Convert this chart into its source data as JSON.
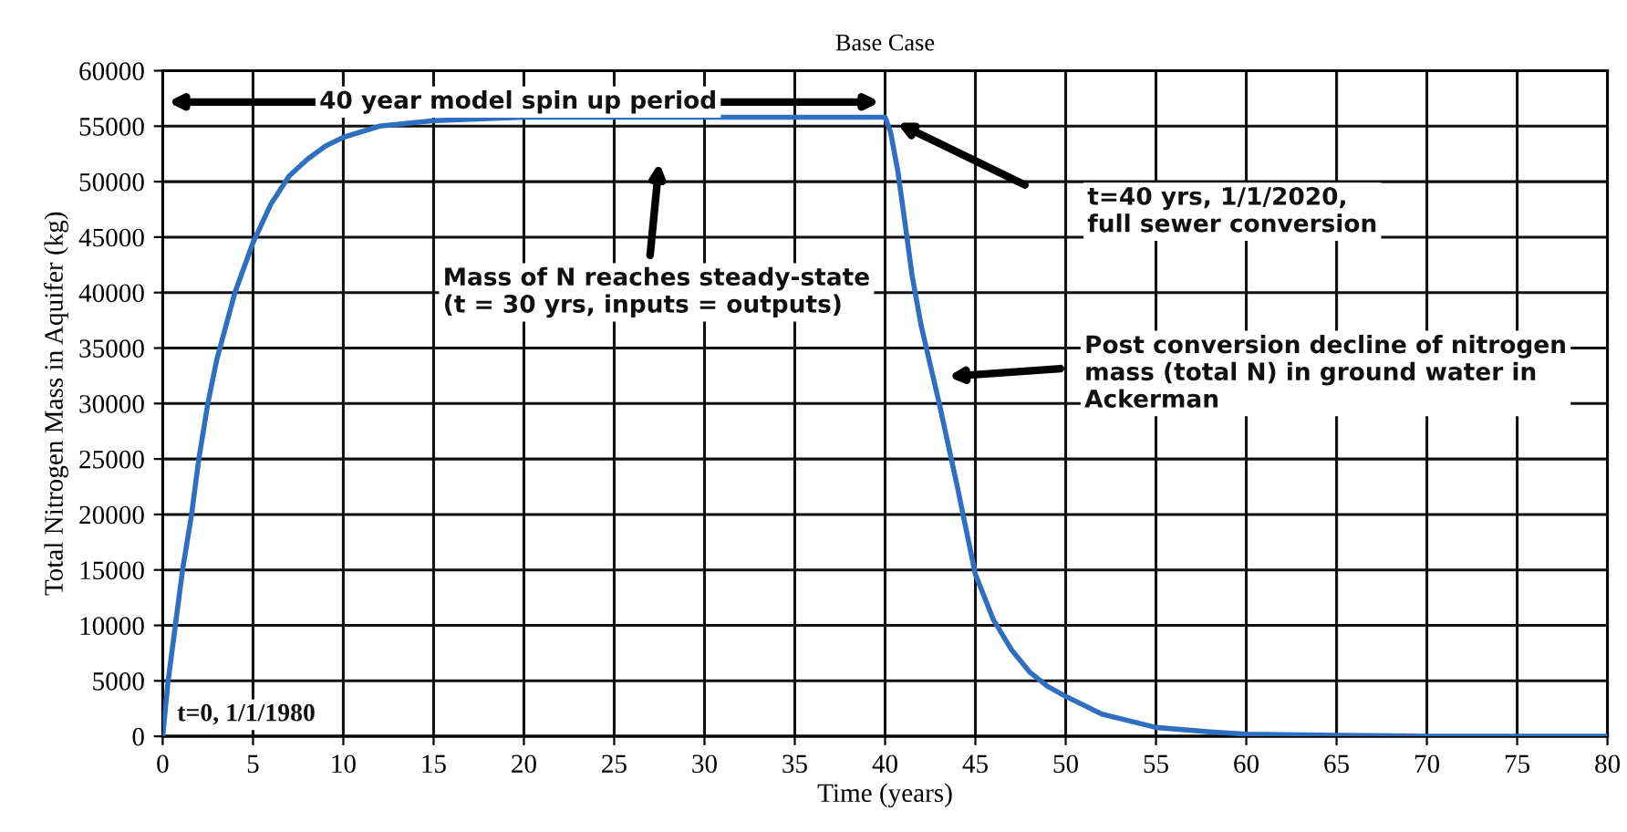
{
  "chart_data": {
    "type": "line",
    "title": "Base Case",
    "xlabel": "Time (years)",
    "ylabel": "Total Nitrogen Mass in Aquifer (kg)",
    "series": [
      {
        "color": "#2e6fc0",
        "x": [
          0,
          0.3,
          0.7,
          1.1,
          1.6,
          2,
          2.5,
          3,
          3.5,
          4,
          5,
          6,
          7,
          8,
          9,
          10,
          12,
          15,
          20,
          30,
          40,
          40.3,
          40.7,
          41,
          41.5,
          42,
          43,
          44,
          45,
          46,
          47,
          48,
          49,
          50,
          52,
          55,
          58,
          60,
          65,
          70,
          75,
          80
        ],
        "values": [
          0,
          5000,
          10000,
          15000,
          20000,
          25000,
          30000,
          34000,
          37000,
          40000,
          44500,
          48000,
          50500,
          52000,
          53200,
          54000,
          55000,
          55500,
          55800,
          55800,
          55800,
          54500,
          51000,
          47500,
          41500,
          37000,
          30000,
          22500,
          14600,
          10500,
          7800,
          5800,
          4500,
          3600,
          2000,
          800,
          400,
          200,
          100,
          0,
          0,
          0
        ]
      }
    ],
    "xlim": [
      0,
      80
    ],
    "ylim": [
      0,
      60000
    ],
    "xticks": [
      0,
      5,
      10,
      15,
      20,
      25,
      30,
      35,
      40,
      45,
      50,
      55,
      60,
      65,
      70,
      75,
      80
    ],
    "yticks": [
      0,
      5000,
      10000,
      15000,
      20000,
      25000,
      30000,
      35000,
      40000,
      45000,
      50000,
      55000,
      60000
    ],
    "grid": true,
    "marker": "none",
    "line_style": "solid",
    "annotations": [
      "40 year model spin up period",
      "Mass of N reaches steady-state\n(t = 30 yrs, inputs = outputs)",
      "t=40 yrs, 1/1/2020,\nfull sewer conversion",
      "Post conversion decline of nitrogen\nmass (total N) in ground water in\nAckerman",
      "t=0, 1/1/1980"
    ]
  }
}
